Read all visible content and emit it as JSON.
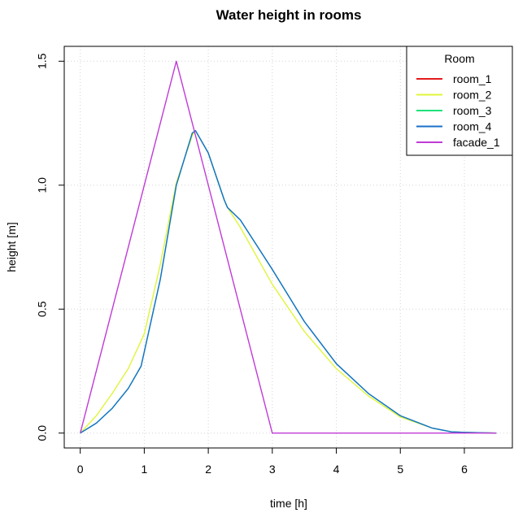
{
  "chart_data": {
    "type": "line",
    "title": "Water height in rooms",
    "xlabel": "time [h]",
    "ylabel": "height [m]",
    "xlim": [
      -0.25,
      6.75
    ],
    "ylim": [
      -0.06,
      1.56
    ],
    "x_ticks": [
      0,
      1,
      2,
      3,
      4,
      5,
      6
    ],
    "y_ticks": [
      0.0,
      0.5,
      1.0,
      1.5
    ],
    "x_tick_labels": [
      "0",
      "1",
      "2",
      "3",
      "4",
      "5",
      "6"
    ],
    "y_tick_labels": [
      "0.0",
      "0.5",
      "1.0",
      "1.5"
    ],
    "grid": true,
    "legend": {
      "title": "Room",
      "placement": "top-right"
    },
    "series": [
      {
        "name": "room_1",
        "color": "#e41a1c",
        "x": [],
        "y": []
      },
      {
        "name": "room_2",
        "color": "#e0f53a",
        "x": [
          0,
          0.25,
          0.5,
          0.75,
          1.0,
          1.25,
          1.5,
          1.75,
          1.8,
          2.0,
          2.25,
          2.3,
          2.5,
          3.0,
          3.5,
          4.0,
          4.5,
          5.0,
          5.5,
          5.8,
          6.0,
          6.5
        ],
        "y": [
          0.0,
          0.07,
          0.16,
          0.26,
          0.4,
          0.68,
          1.01,
          1.2,
          1.22,
          1.13,
          0.94,
          0.91,
          0.83,
          0.6,
          0.41,
          0.26,
          0.15,
          0.065,
          0.02,
          0.005,
          0.003,
          0.0
        ]
      },
      {
        "name": "room_3",
        "color": "#1de27a",
        "x": [
          0,
          0.25,
          0.5,
          0.75,
          0.95,
          1.25,
          1.5,
          1.75,
          1.8,
          2.0,
          2.25,
          2.3,
          2.5,
          3.0,
          3.5,
          4.0,
          4.5,
          5.0,
          5.5,
          5.8,
          6.0,
          6.5
        ],
        "y": [
          0.0,
          0.04,
          0.1,
          0.18,
          0.27,
          0.62,
          1.0,
          1.21,
          1.22,
          1.13,
          0.94,
          0.91,
          0.86,
          0.66,
          0.45,
          0.28,
          0.16,
          0.07,
          0.02,
          0.005,
          0.003,
          0.0
        ]
      },
      {
        "name": "room_4",
        "color": "#1a6fc9",
        "x": [
          0,
          0.25,
          0.5,
          0.75,
          0.95,
          1.25,
          1.5,
          1.75,
          1.8,
          2.0,
          2.25,
          2.3,
          2.5,
          3.0,
          3.5,
          4.0,
          4.5,
          5.0,
          5.5,
          5.8,
          6.0,
          6.5
        ],
        "y": [
          0.0,
          0.04,
          0.1,
          0.18,
          0.27,
          0.62,
          1.0,
          1.21,
          1.22,
          1.13,
          0.94,
          0.91,
          0.86,
          0.66,
          0.45,
          0.28,
          0.16,
          0.07,
          0.02,
          0.005,
          0.003,
          0.0
        ]
      },
      {
        "name": "facade_1",
        "color": "#c03bd6",
        "x": [
          0,
          1.5,
          3.0,
          6.5
        ],
        "y": [
          0.0,
          1.5,
          0.0,
          0.0
        ]
      }
    ]
  }
}
